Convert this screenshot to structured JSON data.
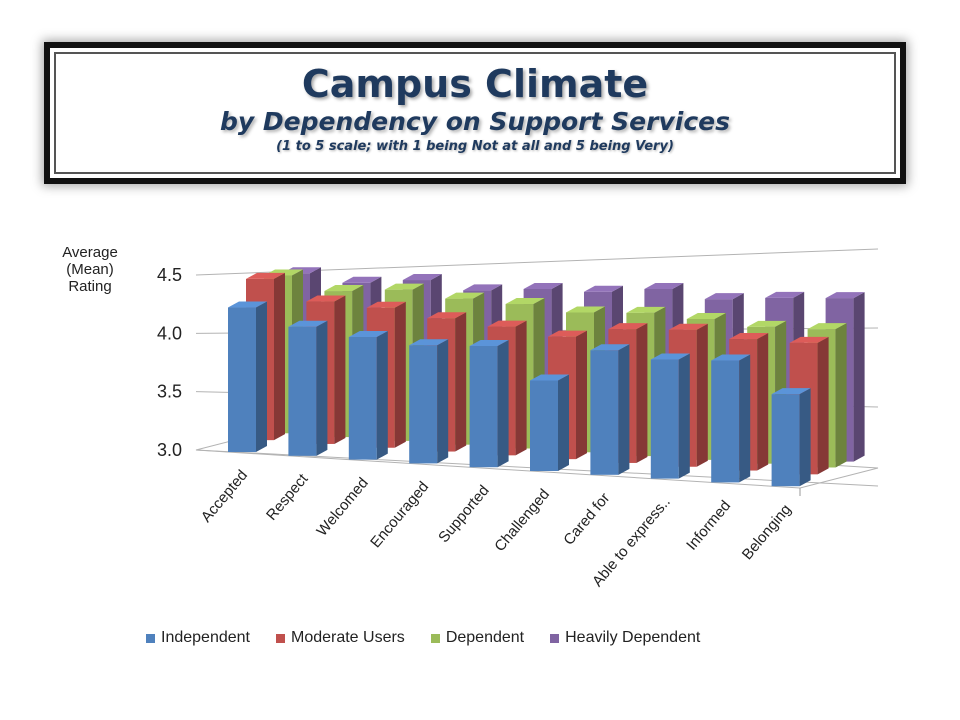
{
  "title": {
    "main": "Campus Climate",
    "sub": "by Dependency on Support Services",
    "note": "(1 to 5 scale; with 1 being Not at all and 5 being Very)"
  },
  "chart_data": {
    "type": "bar",
    "style": "3d-clustered",
    "ylabel": "Average\n(Mean)\nRating",
    "ylim": [
      3.0,
      4.5
    ],
    "yticks": [
      "3.0",
      "3.5",
      "4.0",
      "4.5"
    ],
    "categories": [
      "Accepted",
      "Respect",
      "Welcomed",
      "Encouraged",
      "Supported",
      "Challenged",
      "Cared for",
      "Able to express..",
      "Informed",
      "Belonging"
    ],
    "series": [
      {
        "name": "Independent",
        "color": "#4f81bd",
        "values": [
          4.22,
          4.06,
          3.98,
          3.92,
          3.92,
          3.67,
          3.9,
          3.84,
          3.84,
          3.62
        ]
      },
      {
        "name": "Moderate Users",
        "color": "#c0504d",
        "values": [
          4.35,
          4.16,
          4.11,
          4.03,
          3.97,
          3.9,
          3.96,
          3.96,
          3.9,
          3.88
        ]
      },
      {
        "name": "Dependent",
        "color": "#9bbb59",
        "values": [
          4.31,
          4.18,
          4.19,
          4.12,
          4.08,
          4.02,
          4.02,
          3.98,
          3.93,
          3.92
        ]
      },
      {
        "name": "Heavily Dependent",
        "color": "#8064a2",
        "values": [
          4.27,
          4.19,
          4.21,
          4.13,
          4.14,
          4.12,
          4.14,
          4.07,
          4.08,
          4.08
        ]
      }
    ],
    "grid": true,
    "legend": "bottom"
  }
}
